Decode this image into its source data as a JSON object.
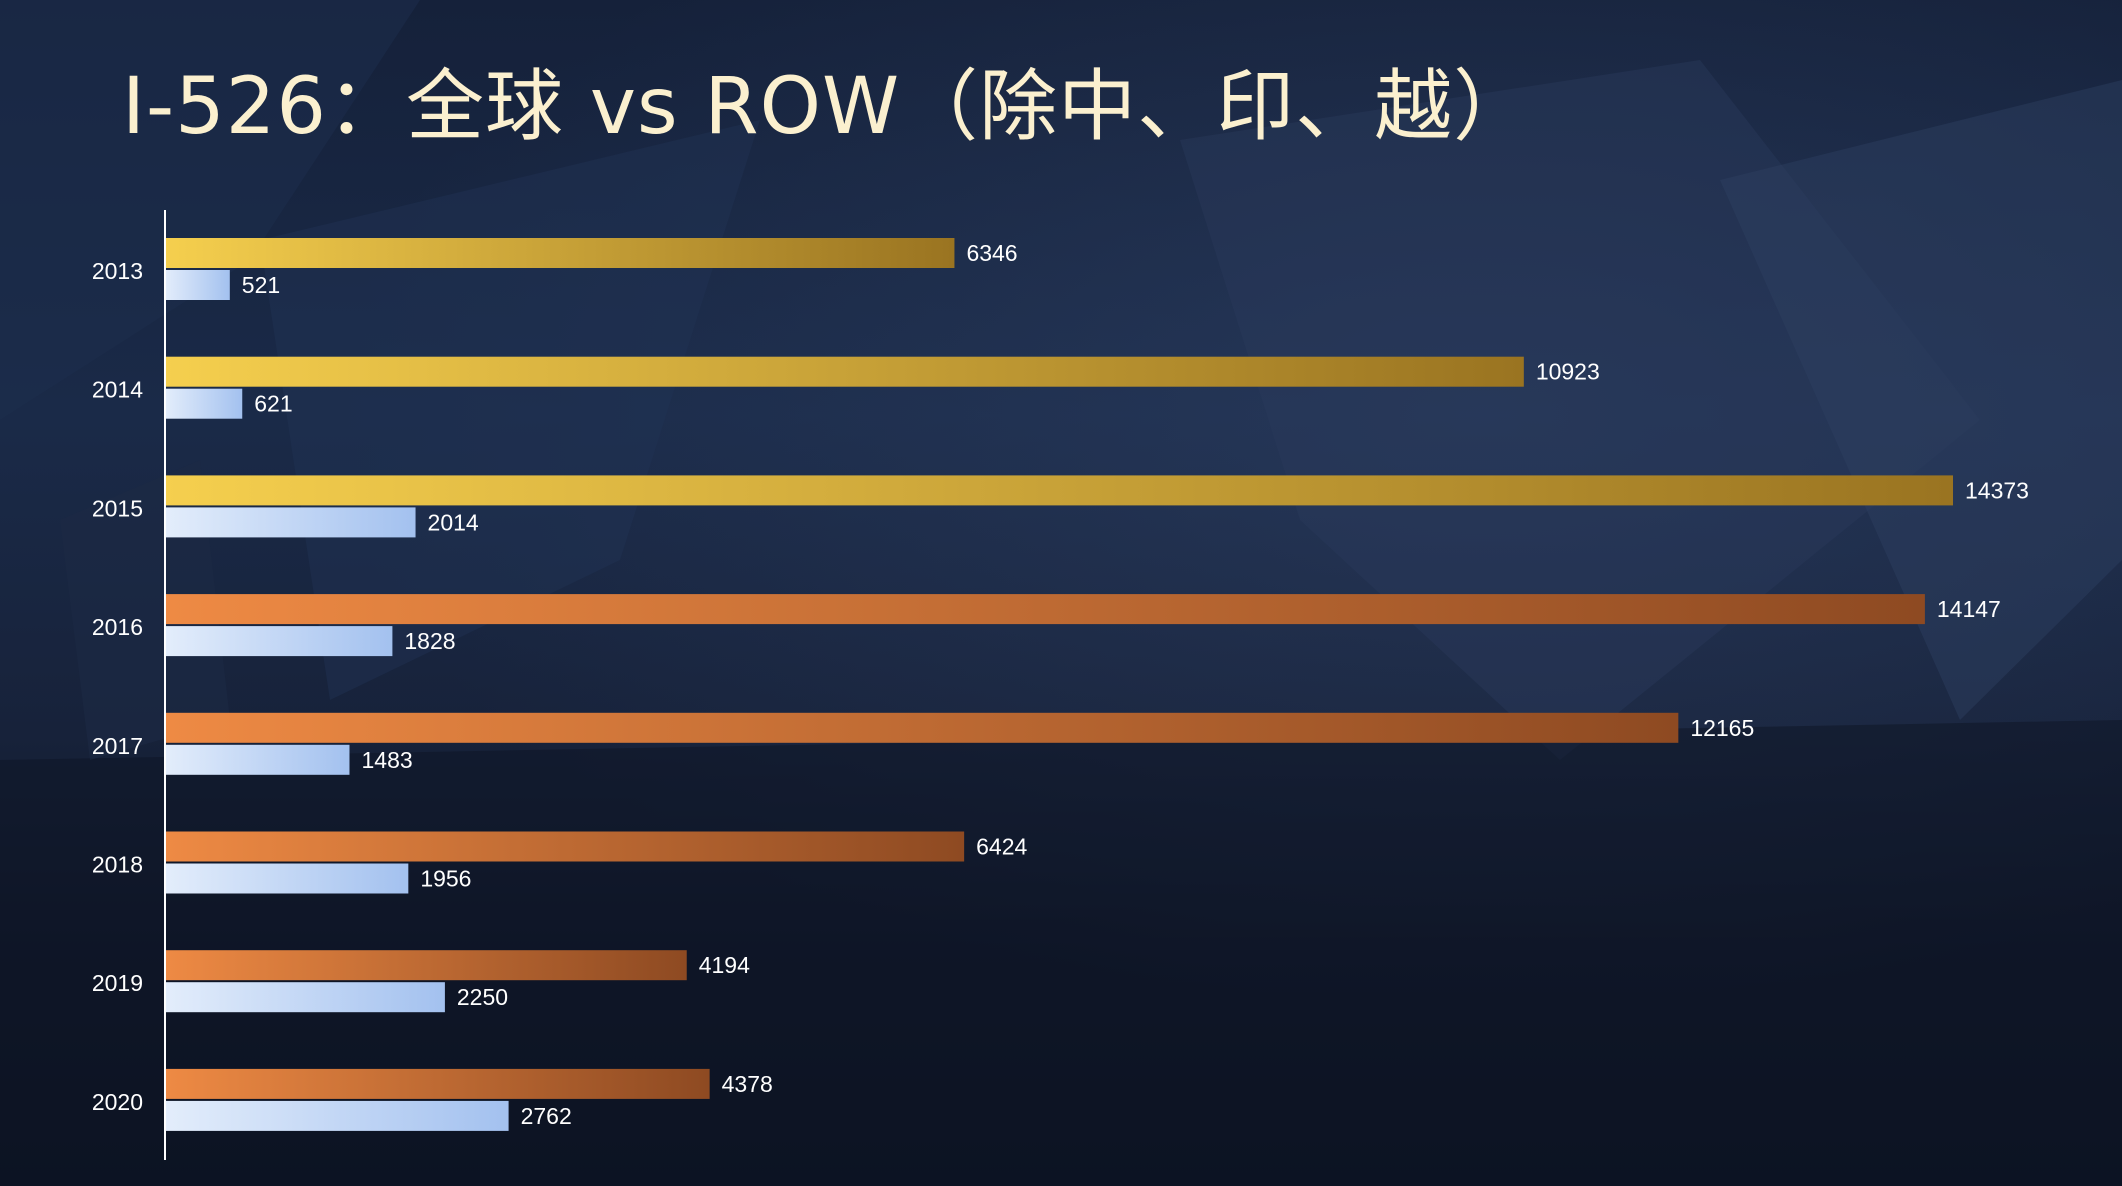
{
  "title": "I-526：全球 vs ROW（除中、印、越）",
  "colors": {
    "global_early_start": "#f5cf4e",
    "global_early_end": "#9a7421",
    "global_late_start": "#ee8a44",
    "global_late_end": "#8e4a22",
    "row_start": "#e3edfb",
    "row_end": "#a3c1ef",
    "label": "#ffffff",
    "axis": "#ffffff"
  },
  "chart_data": {
    "type": "bar",
    "orientation": "horizontal",
    "categories": [
      "2013",
      "2014",
      "2015",
      "2016",
      "2017",
      "2018",
      "2019",
      "2020"
    ],
    "series": [
      {
        "values": [
          6346,
          10923,
          14373,
          14147,
          12165,
          6424,
          4194,
          4378
        ]
      },
      {
        "values": [
          521,
          621,
          2014,
          1828,
          1483,
          1956,
          2250,
          2762
        ]
      }
    ],
    "xlim": [
      0,
      14373
    ],
    "grid": false,
    "legend": "none"
  }
}
